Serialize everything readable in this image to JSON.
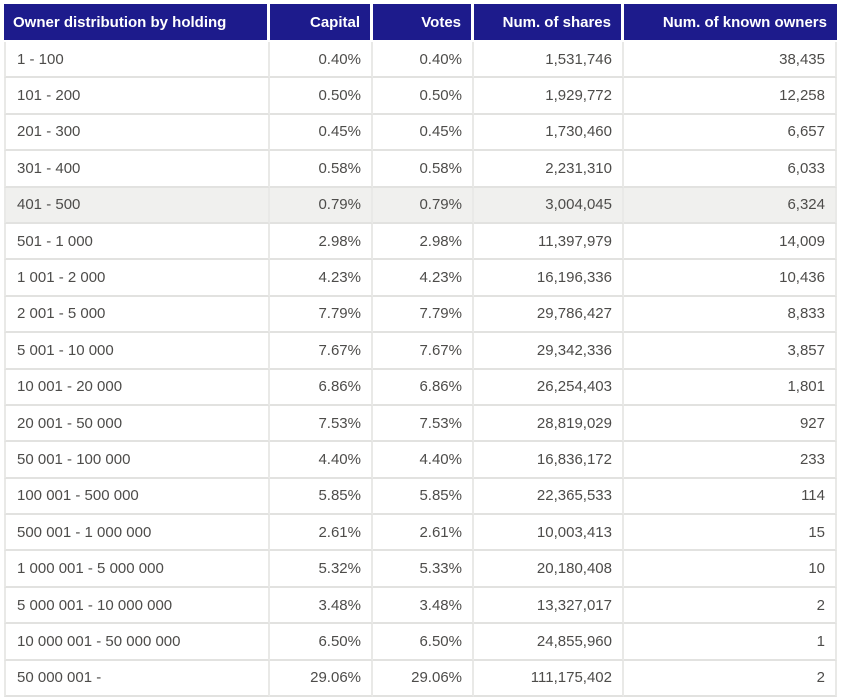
{
  "chart_data": {
    "type": "table",
    "title": "Owner distribution by holding",
    "columns": [
      {
        "label": "Owner distribution by holding",
        "align": "left"
      },
      {
        "label": "Capital",
        "align": "right"
      },
      {
        "label": "Votes",
        "align": "right"
      },
      {
        "label": "Num. of shares",
        "align": "right"
      },
      {
        "label": "Num. of known owners",
        "align": "right"
      }
    ],
    "rows": [
      [
        "1 - 100",
        "0.40%",
        "0.40%",
        "1,531,746",
        "38,435"
      ],
      [
        "101 - 200",
        "0.50%",
        "0.50%",
        "1,929,772",
        "12,258"
      ],
      [
        "201 - 300",
        "0.45%",
        "0.45%",
        "1,730,460",
        "6,657"
      ],
      [
        "301 - 400",
        "0.58%",
        "0.58%",
        "2,231,310",
        "6,033"
      ],
      [
        "401 - 500",
        "0.79%",
        "0.79%",
        "3,004,045",
        "6,324"
      ],
      [
        "501 - 1 000",
        "2.98%",
        "2.98%",
        "11,397,979",
        "14,009"
      ],
      [
        "1 001 - 2 000",
        "4.23%",
        "4.23%",
        "16,196,336",
        "10,436"
      ],
      [
        "2 001 - 5 000",
        "7.79%",
        "7.79%",
        "29,786,427",
        "8,833"
      ],
      [
        "5 001 - 10 000",
        "7.67%",
        "7.67%",
        "29,342,336",
        "3,857"
      ],
      [
        "10 001 - 20 000",
        "6.86%",
        "6.86%",
        "26,254,403",
        "1,801"
      ],
      [
        "20 001 - 50 000",
        "7.53%",
        "7.53%",
        "28,819,029",
        "927"
      ],
      [
        "50 001 - 100 000",
        "4.40%",
        "4.40%",
        "16,836,172",
        "233"
      ],
      [
        "100 001 - 500 000",
        "5.85%",
        "5.85%",
        "22,365,533",
        "114"
      ],
      [
        "500 001 - 1 000 000",
        "2.61%",
        "2.61%",
        "10,003,413",
        "15"
      ],
      [
        "1 000 001 - 5 000 000",
        "5.32%",
        "5.33%",
        "20,180,408",
        "10"
      ],
      [
        "5 000 001 - 10 000 000",
        "3.48%",
        "3.48%",
        "13,327,017",
        "2"
      ],
      [
        "10 000 001 - 50 000 000",
        "6.50%",
        "6.50%",
        "24,855,960",
        "1"
      ],
      [
        "50 000 001 -",
        "29.06%",
        "29.06%",
        "111,175,402",
        "2"
      ]
    ],
    "highlighted_row_index": 4,
    "grid": true,
    "legend_position": "none"
  },
  "colors": {
    "header-bg": "#1d1b8c",
    "header-text": "#ffffff",
    "row-text": "#4d4c4a",
    "row-bg": "#ffffff",
    "highlight-bg": "#f0f0ee",
    "border-h": "#e2e2e0",
    "border-v": "#e9e9e7"
  }
}
